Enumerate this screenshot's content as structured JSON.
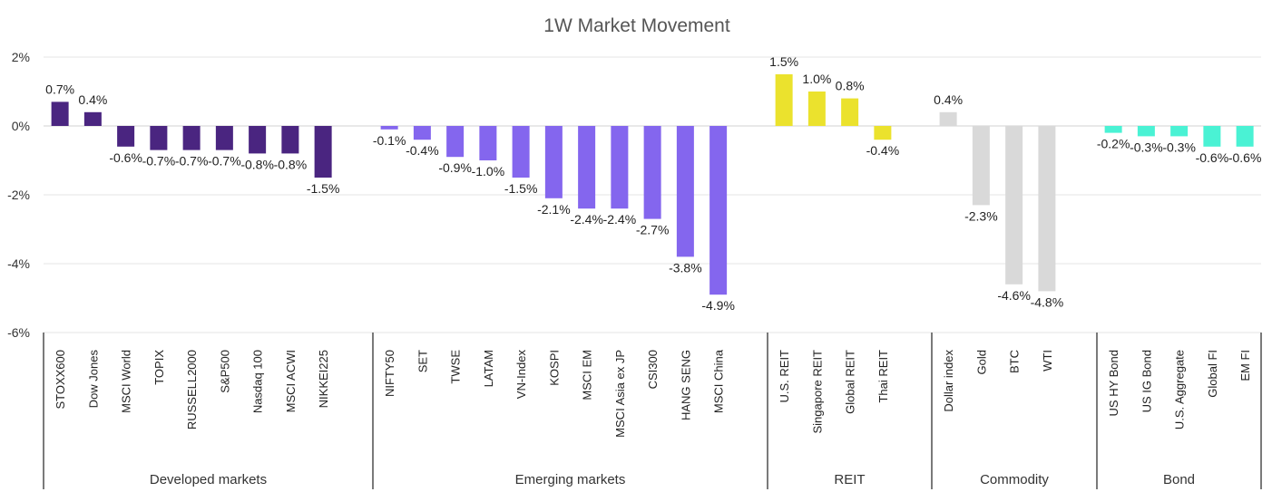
{
  "chart_data": {
    "type": "bar",
    "title": "1W Market Movement",
    "xlabel": "",
    "ylabel": "",
    "ylim": [
      -6,
      2
    ],
    "yticks": [
      "2%",
      "0%",
      "-2%",
      "-4%",
      "-6%"
    ],
    "grid": true,
    "legend": "none",
    "groups": [
      {
        "name": "Developed  markets",
        "color": "#4a2580",
        "categories": [
          "STOXX600",
          "Dow Jones",
          "MSCI World",
          "TOPIX",
          "RUSSELL2000",
          "S&P500",
          "Nasdaq 100",
          "MSCI ACWI",
          "NIKKEI225"
        ],
        "values": [
          0.7,
          0.4,
          -0.6,
          -0.7,
          -0.7,
          -0.7,
          -0.8,
          -0.8,
          -1.5
        ],
        "labels": [
          "0.7%",
          "0.4%",
          "-0.6%",
          "-0.7%",
          "-0.7%",
          "-0.7%",
          "-0.8%",
          "-0.8%",
          "-1.5%"
        ]
      },
      {
        "name": "Emerging markets",
        "color": "#8466ee",
        "categories": [
          "NIFTY50",
          "SET",
          "TWSE",
          "LATAM",
          "VN-Index",
          "KOSPI",
          "MSCI EM",
          "MSCI Asia ex JP",
          "CSI300",
          "HANG SENG",
          "MSCI China"
        ],
        "values": [
          -0.1,
          -0.4,
          -0.9,
          -1.0,
          -1.5,
          -2.1,
          -2.4,
          -2.4,
          -2.7,
          -3.8,
          -4.9
        ],
        "labels": [
          "-0.1%",
          "-0.4%",
          "-0.9%",
          "-1.0%",
          "-1.5%",
          "-2.1%",
          "-2.4%",
          "-2.4%",
          "-2.7%",
          "-3.8%",
          "-4.9%"
        ]
      },
      {
        "name": "REIT",
        "color": "#ebe22d",
        "categories": [
          "U.S. REIT",
          "Singapore REIT",
          "Global REIT",
          "Thai REIT"
        ],
        "values": [
          1.5,
          1.0,
          0.8,
          -0.4
        ],
        "labels": [
          "1.5%",
          "1.0%",
          "0.8%",
          "-0.4%"
        ]
      },
      {
        "name": "Commodity",
        "color": "#d9d9d9",
        "categories": [
          "Dollar index",
          "Gold",
          "BTC",
          "WTI"
        ],
        "values": [
          0.4,
          -2.3,
          -4.6,
          -4.8
        ],
        "labels": [
          "0.4%",
          "-2.3%",
          "-4.6%",
          "-4.8%"
        ]
      },
      {
        "name": "Bond",
        "color": "#4af2d4",
        "categories": [
          "US HY Bond",
          "US IG Bond",
          "U.S. Aggregate",
          "Global FI",
          "EM FI"
        ],
        "values": [
          -0.2,
          -0.3,
          -0.3,
          -0.6,
          -0.6
        ],
        "labels": [
          "-0.2%",
          "-0.3%",
          "-0.3%",
          "-0.6%",
          "-0.6%"
        ]
      }
    ]
  }
}
